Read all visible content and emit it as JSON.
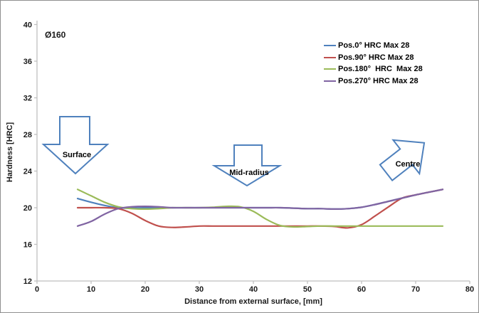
{
  "chart_data": {
    "type": "line",
    "title": "Ø160",
    "xlabel": "Distance from external surface, [mm]",
    "ylabel": "Hardness [HRC]",
    "xlim": [
      0,
      80
    ],
    "ylim": [
      12,
      40
    ],
    "xticks": [
      0,
      10,
      20,
      30,
      40,
      50,
      60,
      70,
      80
    ],
    "yticks": [
      12,
      16,
      20,
      24,
      28,
      32,
      36,
      40
    ],
    "grid": false,
    "legend_position": "upper right",
    "x": [
      7.5,
      10,
      12.5,
      15,
      17.5,
      20,
      22.5,
      25,
      27.5,
      30,
      32.5,
      35,
      37.5,
      40,
      42.5,
      45,
      47.5,
      50,
      52.5,
      55,
      57.5,
      60,
      62.5,
      65,
      67.5,
      70,
      72.5,
      75
    ],
    "series": [
      {
        "name": "Pos.0° HRC Max 28",
        "color": "#4F81BD",
        "values": [
          21.0,
          20.6,
          20.25,
          20.0,
          19.95,
          20.0,
          20.0,
          20.0,
          20.0,
          20.0,
          20.0,
          20.0,
          20.0,
          20.0,
          20.0,
          20.0,
          19.95,
          19.9,
          19.9,
          19.85,
          19.9,
          20.05,
          20.35,
          20.7,
          21.05,
          21.4,
          21.7,
          22.0
        ]
      },
      {
        "name": "Pos.90° HRC Max 28",
        "color": "#C0504D",
        "values": [
          20.0,
          20.0,
          20.0,
          19.9,
          19.4,
          18.6,
          18.0,
          17.85,
          17.9,
          18.0,
          18.0,
          18.0,
          18.0,
          18.0,
          18.0,
          18.0,
          18.0,
          18.0,
          18.0,
          17.95,
          17.8,
          18.15,
          19.1,
          20.1,
          21.05,
          21.4,
          21.7,
          22.0
        ]
      },
      {
        "name": "Pos.180°  HRC  Max 28",
        "color": "#9BBB59",
        "values": [
          22.0,
          21.3,
          20.6,
          20.1,
          19.9,
          19.85,
          19.9,
          20.0,
          20.0,
          20.0,
          20.05,
          20.15,
          20.1,
          19.6,
          18.7,
          18.05,
          17.9,
          17.95,
          18.0,
          18.0,
          18.0,
          18.0,
          18.0,
          18.0,
          18.0,
          18.0,
          18.0,
          18.0
        ]
      },
      {
        "name": "Pos.270° HRC Max 28",
        "color": "#8064A2",
        "values": [
          18.0,
          18.5,
          19.3,
          19.9,
          20.1,
          20.15,
          20.1,
          20.0,
          20.0,
          20.0,
          20.0,
          20.0,
          20.0,
          20.0,
          20.0,
          20.0,
          19.95,
          19.9,
          19.9,
          19.85,
          19.9,
          20.05,
          20.35,
          20.7,
          21.05,
          21.4,
          21.7,
          22.0
        ]
      }
    ],
    "annotations": [
      "Surface",
      "Mid-radius",
      "Centre"
    ]
  },
  "colors": {
    "axis_line": "#BFBFBF",
    "arrow_outline": "#4F81BD",
    "text": "#1a1a1a",
    "background": "#ffffff"
  }
}
